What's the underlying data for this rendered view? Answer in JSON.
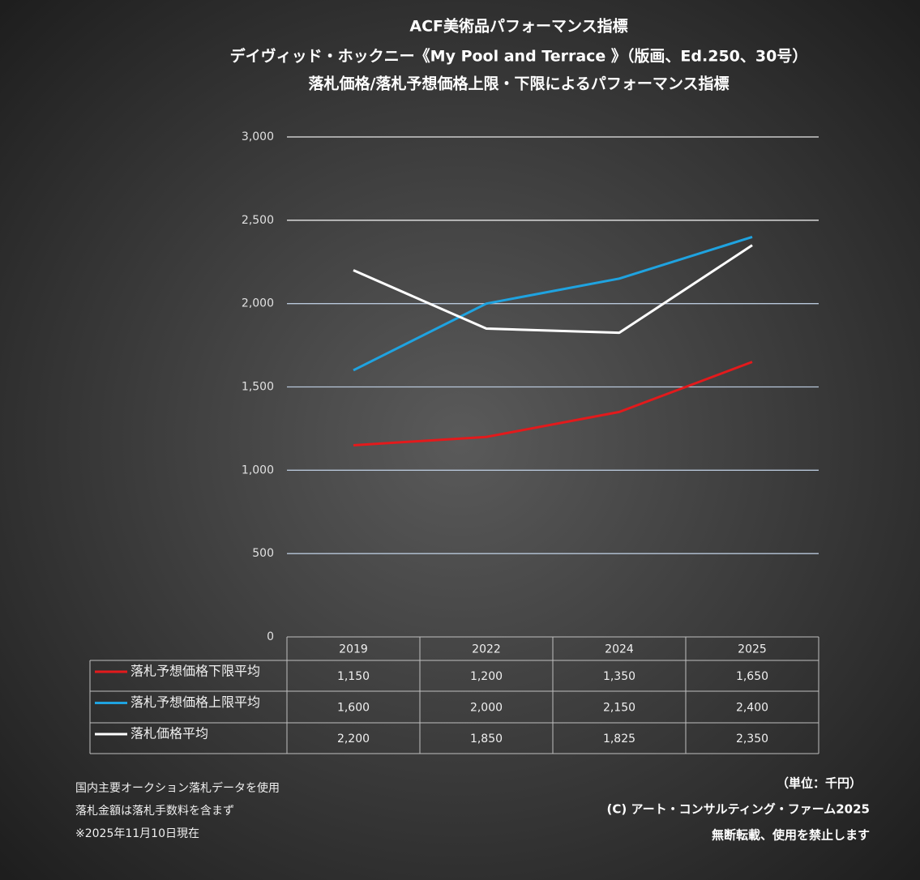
{
  "chart_data": {
    "type": "line",
    "title": [
      "ACF美術品パフォーマンス指標",
      "デイヴィッド・ホックニー《My Pool and Terrace 》（版画、Ed.250、30号）",
      "落札価格/落札予想価格上限・下限によるパフォーマンス指標"
    ],
    "categories": [
      "2019",
      "2022",
      "2024",
      "2025"
    ],
    "series": [
      {
        "name": "落札予想価格下限平均",
        "color": "#e31a1c",
        "values": [
          1150,
          1200,
          1350,
          1650
        ],
        "value_labels": [
          "1,150",
          "1,200",
          "1,350",
          "1,650"
        ]
      },
      {
        "name": "落札予想価格上限平均",
        "color": "#1fa3e0",
        "values": [
          1600,
          2000,
          2150,
          2400
        ],
        "value_labels": [
          "1,600",
          "2,000",
          "2,150",
          "2,400"
        ]
      },
      {
        "name": "落札価格平均",
        "color": "#ffffff",
        "values": [
          2200,
          1850,
          1825,
          2350
        ],
        "value_labels": [
          "2,200",
          "1,850",
          "1,825",
          "2,350"
        ]
      }
    ],
    "ylim": [
      0,
      3000
    ],
    "yticks": [
      0,
      500,
      {
        "value": 1000,
        "label": "1,000"
      },
      {
        "value": 1500,
        "label": "1,500"
      },
      {
        "value": 2000,
        "label": "2,000"
      },
      {
        "value": 2500,
        "label": "2,500"
      },
      {
        "value": 3000,
        "label": "3,000"
      }
    ],
    "grid": true,
    "notes": [
      "国内主要オークション落札データを使用",
      "落札金額は落札手数料を含まず",
      "※2025年11月10日現在"
    ],
    "credits": [
      "（単位：千円）",
      "(C) アート・コンサルティング・ファーム2025",
      "無断転載、使用を禁止します"
    ]
  }
}
